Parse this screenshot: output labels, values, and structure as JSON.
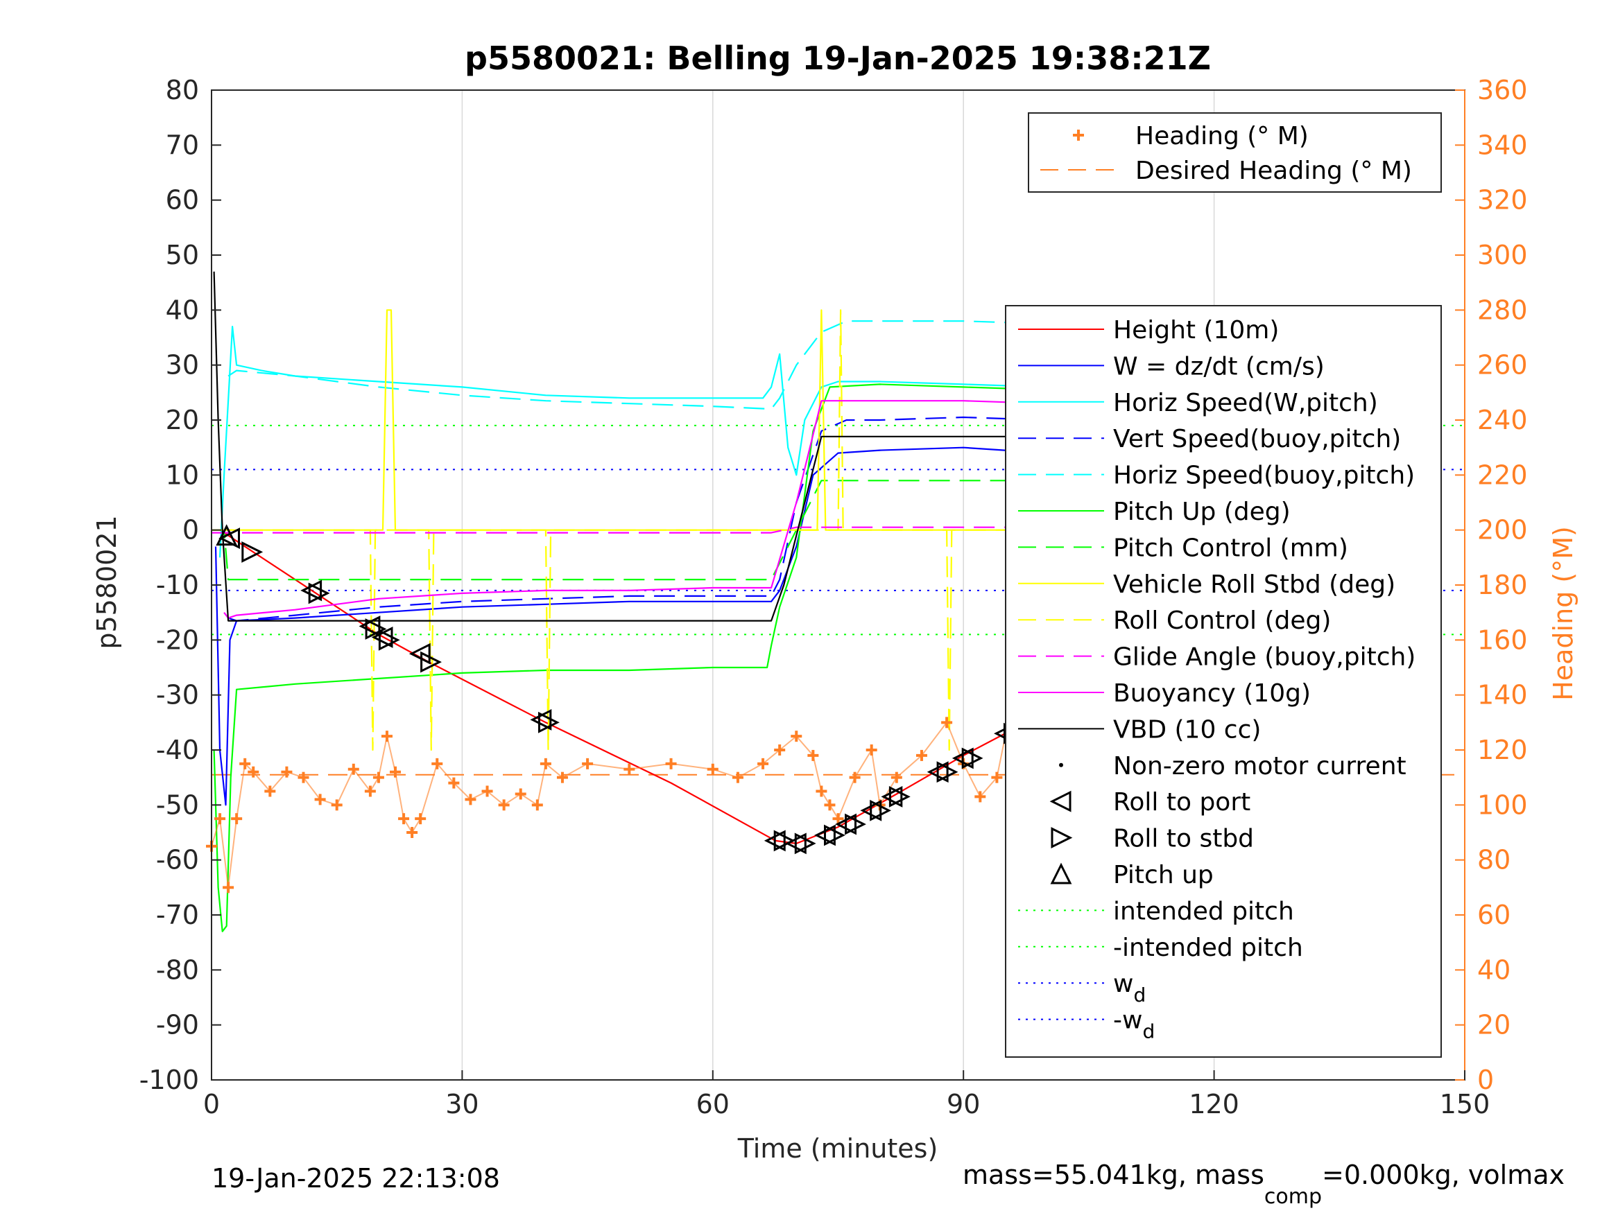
{
  "footer": {
    "date_left": "19-Jan-2025 22:13:08",
    "mass_text": "mass=55.041kg, mass",
    "mass_sub": "comp",
    "mass_rest": "=0.000kg, volmax"
  },
  "chart_data": {
    "type": "line",
    "title": "p5580021: Belling 19-Jan-2025 19:38:21Z",
    "xlabel": "Time (minutes)",
    "ylabel": "p5580021",
    "y2label": "Heading (°M)",
    "xlim": [
      0,
      150
    ],
    "ylim": [
      -100,
      80
    ],
    "y2lim": [
      0,
      360
    ],
    "xticks": [
      0,
      30,
      60,
      90,
      120,
      150
    ],
    "yticks": [
      -100,
      -90,
      -80,
      -70,
      -60,
      -50,
      -40,
      -30,
      -20,
      -10,
      0,
      10,
      20,
      30,
      40,
      50,
      60,
      70,
      80
    ],
    "y2ticks": [
      0,
      20,
      40,
      60,
      80,
      100,
      120,
      140,
      160,
      180,
      200,
      220,
      240,
      260,
      280,
      300,
      320,
      340,
      360
    ],
    "grid": true,
    "legend_top": {
      "placement": "top-right",
      "entries": [
        {
          "label": "Heading (° M)",
          "color": "#ff7f24",
          "style": "plus"
        },
        {
          "label": "Desired Heading (° M)",
          "color": "#ff7f24",
          "style": "dash"
        }
      ]
    },
    "legend_main": {
      "placement": "right",
      "entries": [
        {
          "label": "Height (10m)",
          "color": "#ff0000",
          "style": "solid"
        },
        {
          "label": "W = dz/dt (cm/s)",
          "color": "#0000ff",
          "style": "solid"
        },
        {
          "label": "Horiz Speed(W,pitch)",
          "color": "#00ffff",
          "style": "solid"
        },
        {
          "label": "Vert Speed(buoy,pitch)",
          "color": "#0000ff",
          "style": "dash"
        },
        {
          "label": "Horiz Speed(buoy,pitch)",
          "color": "#00ffff",
          "style": "dash"
        },
        {
          "label": "Pitch Up (deg)",
          "color": "#00ff00",
          "style": "solid"
        },
        {
          "label": "Pitch Control (mm)",
          "color": "#00ff00",
          "style": "dash"
        },
        {
          "label": "Vehicle Roll Stbd (deg)",
          "color": "#ffff00",
          "style": "solid"
        },
        {
          "label": "Roll Control (deg)",
          "color": "#ffff00",
          "style": "dash"
        },
        {
          "label": "Glide Angle (buoy,pitch)",
          "color": "#ff00ff",
          "style": "dash"
        },
        {
          "label": "Buoyancy (10g)",
          "color": "#ff00ff",
          "style": "solid"
        },
        {
          "label": "VBD (10 cc)",
          "color": "#000000",
          "style": "solid"
        },
        {
          "label": "Non-zero motor current",
          "color": "#000000",
          "style": "dot"
        },
        {
          "label": "Roll to port",
          "color": "#000000",
          "style": "tri-left"
        },
        {
          "label": "Roll to stbd",
          "color": "#000000",
          "style": "tri-right"
        },
        {
          "label": "Pitch up",
          "color": "#000000",
          "style": "tri-up"
        },
        {
          "label": "intended pitch",
          "color": "#00ff00",
          "style": "dotted"
        },
        {
          "label": "-intended pitch",
          "color": "#00ff00",
          "style": "dotted"
        },
        {
          "label": "w",
          "sub": "d",
          "color": "#0000ff",
          "style": "dotted"
        },
        {
          "label": "-w",
          "sub": "d",
          "color": "#0000ff",
          "style": "dotted"
        }
      ]
    },
    "reference_lines": [
      {
        "name": "intended pitch",
        "y": 19,
        "color": "#00ff00"
      },
      {
        "name": "-intended pitch",
        "y": -19,
        "color": "#00ff00"
      },
      {
        "name": "w_d",
        "y": 11,
        "color": "#0000ff"
      },
      {
        "name": "-w_d",
        "y": -11,
        "color": "#0000ff"
      },
      {
        "name": "Desired Heading",
        "y2": 111,
        "color": "#ff7f24"
      }
    ],
    "series": [
      {
        "name": "Height (10m)",
        "axis": "left",
        "color": "#ff0000",
        "x": [
          1.5,
          5,
          12,
          20,
          26,
          40,
          55,
          67.5,
          70,
          75,
          82,
          90,
          100,
          110,
          120,
          130,
          140,
          145
        ],
        "y": [
          -0.5,
          -4,
          -11,
          -19,
          -24,
          -35,
          -46,
          -56.5,
          -57,
          -54,
          -48,
          -41,
          -33,
          -25,
          -17,
          -10,
          -3,
          0
        ]
      },
      {
        "name": "W = dz/dt (cm/s)",
        "axis": "left",
        "color": "#0000ff",
        "x": [
          0.5,
          1,
          1.7,
          2.2,
          3,
          10,
          20,
          30,
          40,
          50,
          60,
          67,
          68,
          70,
          72,
          75,
          80,
          90,
          100,
          110,
          120,
          130,
          140,
          144
        ],
        "y": [
          -3,
          -40,
          -50,
          -20,
          -16.5,
          -16,
          -15,
          -14,
          -13.5,
          -13,
          -13,
          -13,
          -11,
          -3,
          10,
          14,
          14.5,
          15,
          14,
          13.5,
          12.5,
          11.5,
          11,
          10
        ]
      },
      {
        "name": "Horiz Speed(W,pitch)",
        "axis": "left",
        "color": "#00ffff",
        "x": [
          1,
          1.5,
          2.5,
          3,
          6,
          10,
          20,
          30,
          40,
          50,
          60,
          66,
          67,
          68,
          69,
          70,
          71,
          73,
          75,
          80,
          90,
          100,
          110,
          120,
          130,
          140,
          144,
          145
        ],
        "y": [
          -5,
          10,
          37,
          30,
          29,
          28,
          27,
          26,
          24.5,
          24,
          24,
          24,
          26,
          32,
          15,
          10,
          20,
          26,
          27,
          27,
          26.5,
          26,
          25.5,
          25,
          24.5,
          23.5,
          23,
          35
        ]
      },
      {
        "name": "Vert Speed(buoy,pitch)",
        "axis": "left",
        "color": "#0000ff",
        "dash": true,
        "x": [
          2,
          3,
          10,
          20,
          30,
          40,
          50,
          60,
          67,
          68,
          70,
          73,
          76,
          80,
          90,
          100,
          110,
          120,
          130,
          140,
          144
        ],
        "y": [
          -16,
          -16.5,
          -15.5,
          -14,
          -13,
          -12.5,
          -12,
          -12,
          -12,
          -9,
          5,
          18,
          20,
          20,
          20.5,
          20,
          19.5,
          19,
          18.5,
          18,
          17
        ]
      },
      {
        "name": "Horiz Speed(buoy,pitch)",
        "axis": "left",
        "color": "#00ffff",
        "dash": true,
        "x": [
          2,
          3,
          10,
          20,
          30,
          40,
          50,
          60,
          67,
          68,
          70,
          73,
          76,
          80,
          90,
          100,
          110,
          120,
          130,
          140,
          144
        ],
        "y": [
          28,
          29,
          28,
          26,
          24.5,
          23.5,
          23,
          22.5,
          22,
          24,
          30,
          36,
          38,
          38,
          38,
          37.5,
          37,
          36.5,
          36,
          35.5,
          35
        ]
      },
      {
        "name": "Pitch Up (deg)",
        "axis": "left",
        "color": "#00ff00",
        "x": [
          0.3,
          0.8,
          1.3,
          1.8,
          2.3,
          3,
          10,
          20,
          30,
          40,
          50,
          60,
          66.5,
          67,
          68,
          70,
          72,
          74,
          80,
          90,
          100,
          110,
          120,
          130,
          140,
          144,
          145
        ],
        "y": [
          -40,
          -65,
          -73,
          -72,
          -45,
          -29,
          -28,
          -27,
          -26,
          -25.5,
          -25.5,
          -25,
          -25,
          -21,
          -14,
          -5,
          18,
          26,
          26.5,
          26,
          25.5,
          25,
          24.5,
          24,
          23.5,
          22,
          5
        ]
      },
      {
        "name": "Pitch Control (mm)",
        "axis": "left",
        "color": "#00ff00",
        "dash": true,
        "x": [
          0,
          1.5,
          2,
          10,
          20,
          30,
          40,
          50,
          60,
          66,
          67,
          73,
          80,
          90,
          100,
          110,
          120,
          130,
          140,
          145
        ],
        "y": [
          0,
          0,
          -9,
          -9,
          -9,
          -9,
          -9,
          -9,
          -9,
          -9,
          -9,
          9,
          9,
          9,
          9,
          9,
          9,
          9,
          9,
          9
        ]
      },
      {
        "name": "Vehicle Roll Stbd (deg)",
        "axis": "left",
        "color": "#ffff00",
        "x": [
          0,
          5,
          20.5,
          21,
          21.5,
          22,
          40,
          60,
          67,
          72.5,
          73,
          73.5,
          80,
          100,
          110,
          120,
          130,
          140,
          145
        ],
        "y": [
          0,
          0,
          0,
          40,
          40,
          0,
          0,
          0,
          0,
          0,
          40,
          0,
          0,
          0,
          0,
          0,
          0,
          0,
          0
        ]
      },
      {
        "name": "Roll Control (deg)",
        "axis": "left",
        "color": "#ffff00",
        "dash": true,
        "x": [
          0,
          10,
          19,
          19.3,
          19.6,
          26,
          26.3,
          26.6,
          40,
          40.3,
          40.6,
          67,
          75,
          75.3,
          75.6,
          88,
          88.3,
          88.6,
          100,
          120,
          140,
          145
        ],
        "y": [
          0,
          0,
          0,
          -40,
          0,
          0,
          -40,
          0,
          0,
          -40,
          0,
          0,
          0,
          40,
          0,
          0,
          -40,
          0,
          0,
          0,
          0,
          0
        ]
      },
      {
        "name": "Glide Angle (buoy,pitch)",
        "axis": "left",
        "color": "#ff00ff",
        "dash": true,
        "x": [
          0,
          67,
          70,
          145
        ],
        "y": [
          -0.5,
          -0.5,
          0.5,
          0.5
        ]
      },
      {
        "name": "Buoyancy (10g)",
        "axis": "left",
        "color": "#ff00ff",
        "x": [
          1.5,
          2,
          3,
          10,
          20,
          30,
          40,
          50,
          60,
          67,
          70,
          73,
          80,
          90,
          100,
          110,
          120,
          130,
          140,
          145
        ],
        "y": [
          -15,
          -16,
          -15.5,
          -14.5,
          -12.5,
          -11.5,
          -11,
          -11,
          -10.5,
          -10.5,
          5,
          23.5,
          23.5,
          23.5,
          23,
          23,
          22.5,
          22,
          21.5,
          21
        ]
      },
      {
        "name": "VBD (10 cc)",
        "axis": "left",
        "color": "#000000",
        "x": [
          0.3,
          0.8,
          1.3,
          2,
          3,
          20,
          40,
          60,
          67,
          68.5,
          73,
          80,
          90,
          100,
          110,
          120,
          130,
          140,
          143,
          143.5,
          145
        ],
        "y": [
          47,
          20,
          0,
          -16.5,
          -16.5,
          -16.5,
          -16.5,
          -16.5,
          -16.5,
          -10,
          17,
          17,
          17,
          17,
          17,
          18,
          18.5,
          19,
          20,
          24,
          24
        ]
      },
      {
        "name": "Heading (° M)",
        "axis": "right",
        "color": "#ff7f24",
        "marker": "plus",
        "x": [
          0,
          1,
          2,
          3,
          4,
          5,
          7,
          9,
          11,
          13,
          15,
          17,
          19,
          20,
          21,
          22,
          23,
          24,
          25,
          27,
          29,
          31,
          33,
          35,
          37,
          39,
          40,
          42,
          45,
          50,
          55,
          60,
          63,
          66,
          68,
          70,
          72,
          73,
          74,
          75,
          77,
          79,
          80,
          82,
          85,
          88,
          90,
          92,
          94,
          96,
          98,
          100,
          102,
          104,
          106,
          108,
          110,
          112,
          114,
          116,
          118,
          120,
          122,
          124,
          126,
          128,
          130,
          132,
          134,
          136,
          138,
          140,
          142,
          144,
          145
        ],
        "y": [
          85,
          95,
          70,
          95,
          115,
          112,
          105,
          112,
          110,
          102,
          100,
          113,
          105,
          110,
          125,
          112,
          95,
          90,
          95,
          115,
          108,
          102,
          105,
          100,
          104,
          100,
          115,
          110,
          115,
          113,
          115,
          113,
          110,
          115,
          120,
          125,
          118,
          105,
          100,
          95,
          110,
          120,
          100,
          110,
          118,
          130,
          115,
          103,
          110,
          140,
          100,
          95,
          110,
          100,
          105,
          120,
          95,
          110,
          100,
          105,
          95,
          115,
          100,
          125,
          110,
          100,
          115,
          105,
          125,
          110,
          95,
          120,
          105,
          130,
          100
        ]
      }
    ],
    "markers": {
      "pitch_up": {
        "x": [
          1.8
        ],
        "y": [
          -1
        ]
      },
      "roll_to_port": {
        "x": [
          2.2,
          12,
          19,
          20.5,
          25,
          39.5,
          67.5,
          70,
          73.5,
          76,
          79,
          81.5,
          87,
          90,
          95,
          100,
          104,
          107,
          110,
          112,
          114,
          116,
          118,
          125,
          129,
          131,
          138,
          140,
          142,
          144
        ],
        "y": [
          -1.5,
          -11,
          -17.5,
          -19.5,
          -22.5,
          -34.5,
          -56.5,
          -57,
          -55.5,
          -53.5,
          -51,
          -48.5,
          -44,
          -41.5,
          -37,
          -33,
          -30,
          -28,
          -26,
          -24,
          -22,
          -20.5,
          -18.5,
          -13,
          -11,
          -9.5,
          -4.5,
          -3,
          -2,
          -0.5
        ]
      },
      "roll_to_stbd": {
        "x": [
          4.8,
          12.8,
          19.6,
          21.2,
          26.2,
          40.3,
          68.5,
          71,
          74.5,
          77,
          80,
          82.3,
          88,
          91,
          96,
          101,
          105,
          108,
          111,
          113,
          115,
          117,
          119,
          126,
          130,
          132,
          139,
          141,
          143,
          145
        ],
        "y": [
          -4,
          -11.5,
          -18,
          -20,
          -24,
          -35,
          -56.5,
          -57,
          -55.5,
          -53.5,
          -51,
          -48.5,
          -44,
          -41.5,
          -37,
          -33,
          -30,
          -28,
          -26,
          -24,
          -22,
          -20.5,
          -18.5,
          -13,
          -11,
          -9.5,
          -4.5,
          -3,
          -2,
          -0.5
        ]
      }
    }
  }
}
